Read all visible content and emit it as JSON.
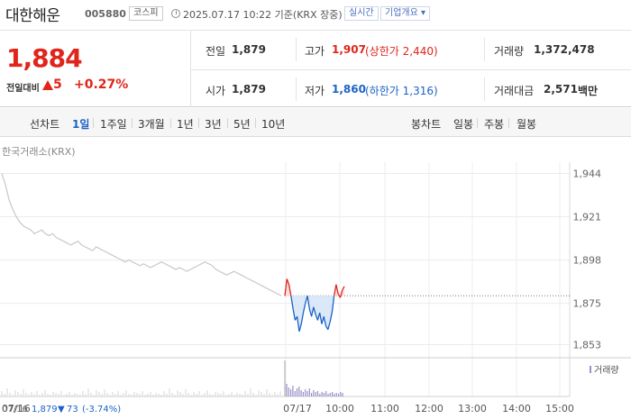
{
  "header": {
    "stock_name": "대한해운",
    "stock_code": "005880",
    "market": "코스피",
    "timestamp": "2025.07.17 10:22 기준(KRX 장중)",
    "realtime": "실시간",
    "overview": "기업개요 ▾"
  },
  "price": {
    "current": "1,884",
    "change_label": "전일대비",
    "change_amount": "5",
    "change_pct": "+0.27%"
  },
  "quotes": {
    "prev_label": "전일",
    "prev_value": "1,879",
    "open_label": "시가",
    "open_value": "1,879",
    "high_label": "고가",
    "high_value": "1,907",
    "upper_limit": "(상한가 2,440)",
    "low_label": "저가",
    "low_value": "1,860",
    "lower_limit": "(하한가 1,316)",
    "volume_label": "거래량",
    "volume_value": "1,372,478",
    "amount_label": "거래대금",
    "amount_value": "2,571",
    "amount_unit": "백만"
  },
  "periods": {
    "line_label": "선차트",
    "items": [
      "1일",
      "1주일",
      "3개월",
      "1년",
      "3년",
      "5년",
      "10년"
    ],
    "selected": "1일",
    "candle_label": "봉차트",
    "candle_items": [
      "일봉",
      "주봉",
      "월봉"
    ]
  },
  "colors": {
    "up": "#e0251b",
    "down": "#1b63c6",
    "prev_series": "#c8c8c8",
    "volume": "#9b8fc9"
  },
  "chart_data": {
    "type": "line",
    "caption": "한국거래소(KRX)",
    "y_ticks": [
      1944,
      1921,
      1898,
      1875,
      1853
    ],
    "ylim": [
      1848,
      1950
    ],
    "reference_price": 1879,
    "x_ticks": [
      "07/16",
      "07/17",
      "10:00",
      "11:00",
      "12:00",
      "13:00",
      "14:00",
      "15:00"
    ],
    "grid": true,
    "series": [
      {
        "name": "07/16",
        "values": [
          1944,
          1938,
          1930,
          1925,
          1921,
          1918,
          1916,
          1915,
          1914,
          1912,
          1913,
          1914,
          1912,
          1911,
          1912,
          1910,
          1909,
          1908,
          1907,
          1906,
          1907,
          1908,
          1906,
          1905,
          1904,
          1903,
          1905,
          1904,
          1903,
          1902,
          1901,
          1900,
          1899,
          1898,
          1897,
          1898,
          1897,
          1896,
          1895,
          1896,
          1895,
          1894,
          1895,
          1896,
          1897,
          1896,
          1895,
          1894,
          1893,
          1894,
          1893,
          1892,
          1893,
          1894,
          1895,
          1896,
          1897,
          1896,
          1895,
          1893,
          1892,
          1891,
          1890,
          1891,
          1892,
          1891,
          1890,
          1889,
          1888,
          1887,
          1886,
          1885,
          1884,
          1883,
          1882,
          1881,
          1880,
          1879
        ]
      },
      {
        "name": "07/17",
        "values": [
          1879,
          1888,
          1885,
          1879,
          1872,
          1866,
          1868,
          1860,
          1864,
          1870,
          1875,
          1879,
          1872,
          1868,
          1873,
          1869,
          1866,
          1870,
          1864,
          1868,
          1863,
          1861,
          1865,
          1870,
          1879,
          1885,
          1880,
          1878,
          1882,
          1884
        ]
      }
    ],
    "volume_label": "거래량",
    "status": {
      "date": "07/16",
      "close": "1,879",
      "change_mark": "▼",
      "change": "73",
      "change_pct": "(-3.74%)"
    }
  }
}
